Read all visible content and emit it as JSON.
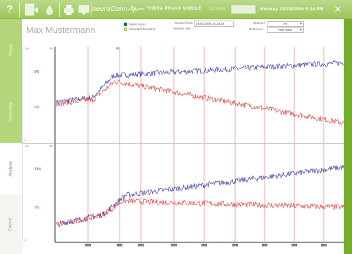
{
  "toolbar": {
    "help_label": "?",
    "brand": "neuroConn",
    "product": "THERA PRAX® MOBILE",
    "time_label": "1:11:1 min",
    "datetime": "Monday 10/23/2006 5:34 PM",
    "close_label": "✕"
  },
  "sidebar": {
    "tabs": [
      {
        "label": "Patient"
      },
      {
        "label": "Measuring"
      },
      {
        "label": "Analysis"
      },
      {
        "label": "Control"
      }
    ]
  },
  "header": {
    "patient_name": "Max Mustermann",
    "legend": [
      {
        "label": "Mean Value",
        "color": "#2e6b5a"
      },
      {
        "label": "Standard Deviation",
        "color": "#b5d36a"
      }
    ],
    "session_until_label": "Session until",
    "session_from_label": "Session from",
    "session_from_value": "25.03.2003 14:10:24",
    "channel_label": "Channel",
    "channel_value": "F4",
    "reference_label": "Reference",
    "reference_value": "REF EEG"
  },
  "chart_data": {
    "type": "line",
    "marker_label": "M",
    "panels": [
      {
        "ylabels_top": "1%",
        "ylabels_bottom": "0",
        "y_scale_top": "50",
        "series": [
          {
            "name": "8%",
            "color": "#3a3aa8"
          },
          {
            "name": "6%",
            "color": "#d83a3a"
          }
        ]
      },
      {
        "ylabels_top": "1%",
        "ylabels_bottom": "0",
        "y_scale_top": "50",
        "series": [
          {
            "name": "13%",
            "color": "#3a3aa8"
          },
          {
            "name": "7%",
            "color": "#d83a3a"
          }
        ]
      }
    ],
    "x_tick_labels": [
      "0.001",
      "0.001",
      "0.001",
      "0.001",
      "0.001",
      "0.001",
      "0.001",
      "0.001",
      "0.001"
    ]
  }
}
